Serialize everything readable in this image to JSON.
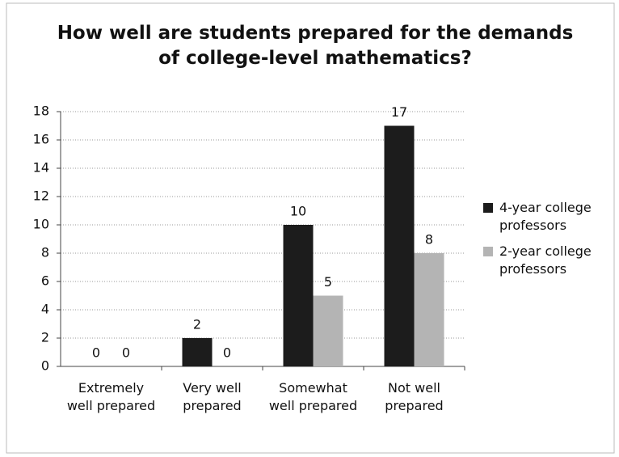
{
  "chart_data": {
    "type": "bar",
    "title": "How well are students prepared for the demands of college-level mathematics?",
    "categories": [
      "Extremely well prepared",
      "Very well prepared",
      "Somewhat well prepared",
      "Not well prepared"
    ],
    "series": [
      {
        "name": "4-year college professors",
        "color": "#1c1c1c",
        "values": [
          0,
          2,
          10,
          17
        ]
      },
      {
        "name": "2-year college professors",
        "color": "#b4b4b4",
        "values": [
          0,
          0,
          5,
          8
        ]
      }
    ],
    "ylim": [
      0,
      18
    ],
    "yticks": [
      0,
      2,
      4,
      6,
      8,
      10,
      12,
      14,
      16,
      18
    ],
    "grid": true,
    "legend": "right"
  }
}
